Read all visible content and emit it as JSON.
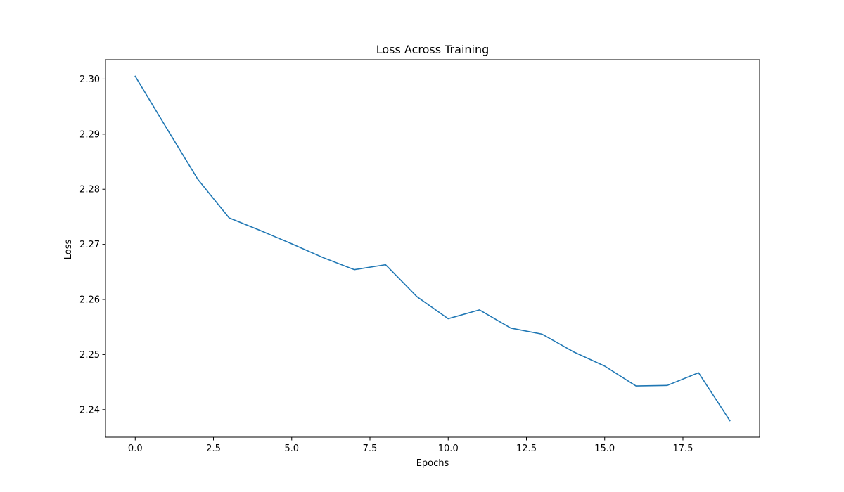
{
  "chart_data": {
    "type": "line",
    "title": "Loss Across Training",
    "xlabel": "Epochs",
    "ylabel": "Loss",
    "xlim": [
      -0.95,
      19.95
    ],
    "ylim": [
      2.235,
      2.3035
    ],
    "xticks": [
      0.0,
      2.5,
      5.0,
      7.5,
      10.0,
      12.5,
      15.0,
      17.5
    ],
    "xtick_labels": [
      "0.0",
      "2.5",
      "5.0",
      "7.5",
      "10.0",
      "12.5",
      "15.0",
      "17.5"
    ],
    "yticks": [
      2.24,
      2.25,
      2.26,
      2.27,
      2.28,
      2.29,
      2.3
    ],
    "ytick_labels": [
      "2.24",
      "2.25",
      "2.26",
      "2.27",
      "2.28",
      "2.29",
      "2.30"
    ],
    "grid": false,
    "series": [
      {
        "color": "#1f77b4",
        "x": [
          0,
          1,
          2,
          3,
          4,
          5,
          6,
          7,
          8,
          9,
          10,
          11,
          12,
          13,
          14,
          15,
          16,
          17,
          18,
          19
        ],
        "y": [
          2.3005,
          2.2911,
          2.2818,
          2.2748,
          2.2725,
          2.2701,
          2.2676,
          2.2654,
          2.2663,
          2.2605,
          2.2565,
          2.2581,
          2.2548,
          2.2537,
          2.2505,
          2.2479,
          2.2443,
          2.2444,
          2.2467,
          2.238
        ]
      }
    ]
  }
}
